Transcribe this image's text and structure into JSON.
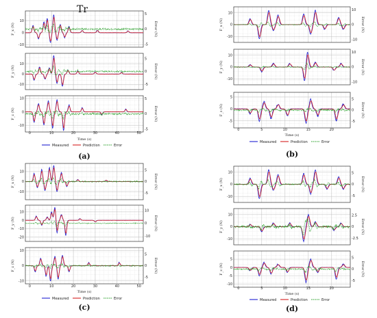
{
  "title": "Tr",
  "legend": {
    "measured": "Measured",
    "prediction": "Prediction",
    "error": "Error"
  },
  "colors": {
    "measured": "#1f1fd0",
    "prediction": "#d62020",
    "error": "#2ca02c"
  },
  "chart_data": [
    {
      "type": "line",
      "panel_label": "(a)",
      "xlabel": "Time (s)",
      "xlim": [
        -2,
        52
      ],
      "xticks": [
        0,
        10,
        20,
        30,
        40,
        50
      ],
      "subplots": [
        {
          "ylabel": "F_x (N)",
          "ylim": [
            -12,
            18
          ],
          "yticks": [
            10,
            0,
            -10
          ],
          "ylabel_right": "Error (N)",
          "err_ylim": [
            -6,
            6
          ],
          "err_yticks": [
            5,
            0,
            -5
          ],
          "events": [
            {
              "x": 1.5,
              "a": 6
            },
            {
              "x": 4.0,
              "a": -5
            },
            {
              "x": 6.5,
              "a": 9
            },
            {
              "x": 8.0,
              "a": 12
            },
            {
              "x": 9.5,
              "a": -8
            },
            {
              "x": 11.0,
              "a": 15
            },
            {
              "x": 12.5,
              "a": -6
            },
            {
              "x": 14.0,
              "a": 7
            },
            {
              "x": 16.0,
              "a": -4
            },
            {
              "x": 18.0,
              "a": 5
            },
            {
              "x": 24.0,
              "a": 2
            },
            {
              "x": 31.0,
              "a": 2
            },
            {
              "x": 45.0,
              "a": 1.5
            }
          ]
        },
        {
          "ylabel": "F_y (N)",
          "ylim": [
            -15,
            20
          ],
          "yticks": [
            10,
            0,
            -10
          ],
          "ylabel_right": "Error (N)",
          "err_ylim": [
            -7,
            7
          ],
          "err_yticks": [
            5,
            0,
            -5
          ],
          "events": [
            {
              "x": 2.0,
              "a": -6
            },
            {
              "x": 4.5,
              "a": 7
            },
            {
              "x": 7.0,
              "a": -5
            },
            {
              "x": 9.0,
              "a": 6
            },
            {
              "x": 11.0,
              "a": 18
            },
            {
              "x": 12.5,
              "a": -9
            },
            {
              "x": 15.0,
              "a": -12
            },
            {
              "x": 17.5,
              "a": 4
            },
            {
              "x": 22.0,
              "a": 3
            },
            {
              "x": 30.0,
              "a": 2
            },
            {
              "x": 42.0,
              "a": 1.5
            }
          ]
        },
        {
          "ylabel": "F_z (N)",
          "ylim": [
            -15,
            12
          ],
          "yticks": [
            10,
            0,
            -10
          ],
          "ylabel_right": "Error (N)",
          "err_ylim": [
            -6,
            6
          ],
          "err_yticks": [
            5,
            0,
            -5
          ],
          "events": [
            {
              "x": 2.0,
              "a": -8
            },
            {
              "x": 4.0,
              "a": 6
            },
            {
              "x": 6.5,
              "a": -10
            },
            {
              "x": 8.5,
              "a": 8
            },
            {
              "x": 10.5,
              "a": -12
            },
            {
              "x": 12.5,
              "a": 9
            },
            {
              "x": 15.5,
              "a": -14
            },
            {
              "x": 18.0,
              "a": 5
            },
            {
              "x": 24.0,
              "a": 3
            },
            {
              "x": 33.0,
              "a": -2
            },
            {
              "x": 44.0,
              "a": 2
            }
          ]
        }
      ]
    },
    {
      "type": "line",
      "panel_label": "(b)",
      "xlabel": "Time (s)",
      "xlim": [
        -1,
        24
      ],
      "xticks": [
        0,
        5,
        10,
        15,
        20
      ],
      "subplots": [
        {
          "ylabel": "F_x (N)",
          "ylim": [
            -15,
            15
          ],
          "yticks": [
            10,
            0,
            -10
          ],
          "ylabel_right": "Error (N)",
          "err_ylim": [
            -12,
            12
          ],
          "err_yticks": [
            10,
            0,
            -10
          ],
          "events": [
            {
              "x": 2.5,
              "a": 5
            },
            {
              "x": 4.5,
              "a": -12
            },
            {
              "x": 6.5,
              "a": 12
            },
            {
              "x": 7.5,
              "a": -5
            },
            {
              "x": 8.5,
              "a": 8
            },
            {
              "x": 14.0,
              "a": 9
            },
            {
              "x": 15.5,
              "a": -8
            },
            {
              "x": 16.5,
              "a": 12
            },
            {
              "x": 18.5,
              "a": -4
            },
            {
              "x": 21.5,
              "a": 6
            },
            {
              "x": 22.5,
              "a": -4
            }
          ]
        },
        {
          "ylabel": "F_y (N)",
          "ylim": [
            -15,
            15
          ],
          "yticks": [
            10,
            0,
            -10
          ],
          "ylabel_right": "Error (N)",
          "err_ylim": [
            -12,
            12
          ],
          "err_yticks": [
            10,
            0,
            -10
          ],
          "events": [
            {
              "x": 2.5,
              "a": 2
            },
            {
              "x": 5.0,
              "a": -4
            },
            {
              "x": 7.5,
              "a": 3
            },
            {
              "x": 11.0,
              "a": 3
            },
            {
              "x": 14.8,
              "a": 13
            },
            {
              "x": 14.2,
              "a": -12
            },
            {
              "x": 16.5,
              "a": 4
            },
            {
              "x": 20.5,
              "a": -3
            },
            {
              "x": 22.0,
              "a": 3
            }
          ]
        },
        {
          "ylabel": "F_z (N)",
          "ylim": [
            -8,
            7
          ],
          "yticks": [
            5,
            0,
            -5
          ],
          "ylabel_right": "Error (N)",
          "err_ylim": [
            -8,
            8
          ],
          "err_yticks": [
            5,
            0,
            -5
          ],
          "events": [
            {
              "x": 2.5,
              "a": -2
            },
            {
              "x": 4.5,
              "a": -5
            },
            {
              "x": 5.5,
              "a": 3
            },
            {
              "x": 7.0,
              "a": -4
            },
            {
              "x": 8.5,
              "a": 2
            },
            {
              "x": 10.5,
              "a": -3
            },
            {
              "x": 14.5,
              "a": -6
            },
            {
              "x": 15.5,
              "a": 4
            },
            {
              "x": 17.0,
              "a": -3
            },
            {
              "x": 21.0,
              "a": -5
            },
            {
              "x": 22.5,
              "a": 2
            }
          ]
        }
      ]
    },
    {
      "type": "line",
      "panel_label": "(c)",
      "xlabel": "Time (s)",
      "xlim": [
        -2,
        52
      ],
      "xticks": [
        0,
        10,
        20,
        30,
        40,
        50
      ],
      "subplots": [
        {
          "ylabel": "F_x (N)",
          "ylim": [
            -18,
            18
          ],
          "yticks": [
            10,
            0,
            -10
          ],
          "ylabel_right": "Error (N)",
          "err_ylim": [
            -8,
            8
          ],
          "err_yticks": [
            5,
            0,
            -5
          ],
          "events": [
            {
              "x": 2.0,
              "a": 8
            },
            {
              "x": 3.5,
              "a": -6
            },
            {
              "x": 5.5,
              "a": 12
            },
            {
              "x": 7.0,
              "a": -9
            },
            {
              "x": 9.0,
              "a": 14
            },
            {
              "x": 11.0,
              "a": 16
            },
            {
              "x": 12.5,
              "a": -10
            },
            {
              "x": 14.5,
              "a": 9
            },
            {
              "x": 17.0,
              "a": -5
            },
            {
              "x": 22.0,
              "a": 2
            },
            {
              "x": 35.0,
              "a": 1.5
            }
          ]
        },
        {
          "ylabel": "F_y (N)",
          "ylim": [
            -25,
            18
          ],
          "yticks": [
            10,
            0,
            -10,
            -20
          ],
          "ylabel_right": "Error (N)",
          "err_ylim": [
            -14,
            14
          ],
          "err_yticks": [
            10,
            0,
            -10
          ],
          "events": [
            {
              "x": 3.0,
              "a": 5
            },
            {
              "x": 5.5,
              "a": -6
            },
            {
              "x": 8.0,
              "a": 4
            },
            {
              "x": 10.0,
              "a": 10
            },
            {
              "x": 11.5,
              "a": 16
            },
            {
              "x": 12.5,
              "a": -15
            },
            {
              "x": 14.5,
              "a": 7
            },
            {
              "x": 16.5,
              "a": -18
            },
            {
              "x": 23.0,
              "a": 2
            },
            {
              "x": 30.0,
              "a": -2
            }
          ]
        },
        {
          "ylabel": "F_z (N)",
          "ylim": [
            -12,
            12
          ],
          "yticks": [
            10,
            0,
            -10
          ],
          "ylabel_right": "Error (N)",
          "err_ylim": [
            -8,
            8
          ],
          "err_yticks": [
            5,
            0,
            -5
          ],
          "events": [
            {
              "x": 2.5,
              "a": -4
            },
            {
              "x": 5.0,
              "a": 5
            },
            {
              "x": 7.5,
              "a": -7
            },
            {
              "x": 9.5,
              "a": -10
            },
            {
              "x": 11.5,
              "a": 6
            },
            {
              "x": 13.0,
              "a": -9
            },
            {
              "x": 15.0,
              "a": 7
            },
            {
              "x": 18.0,
              "a": -4
            },
            {
              "x": 27.0,
              "a": 2
            },
            {
              "x": 41.0,
              "a": 2
            }
          ]
        }
      ]
    },
    {
      "type": "line",
      "panel_label": "(d)",
      "xlabel": "Time (s)",
      "xlim": [
        -1,
        24
      ],
      "xticks": [
        0,
        5,
        10,
        15,
        20
      ],
      "subplots": [
        {
          "ylabel": "F_x (N)",
          "ylim": [
            -15,
            15
          ],
          "yticks": [
            10,
            0,
            -10
          ],
          "ylabel_right": "Error (N)",
          "err_ylim": [
            -8,
            8
          ],
          "err_yticks": [
            5,
            0,
            -5
          ],
          "events": [
            {
              "x": 2.5,
              "a": 5
            },
            {
              "x": 4.5,
              "a": -12
            },
            {
              "x": 6.5,
              "a": 12
            },
            {
              "x": 7.5,
              "a": -5
            },
            {
              "x": 8.5,
              "a": 8
            },
            {
              "x": 14.0,
              "a": 9
            },
            {
              "x": 15.5,
              "a": -8
            },
            {
              "x": 16.5,
              "a": 12
            },
            {
              "x": 19.0,
              "a": -4
            },
            {
              "x": 21.5,
              "a": 6
            },
            {
              "x": 22.5,
              "a": -4
            }
          ]
        },
        {
          "ylabel": "F_y (N)",
          "ylim": [
            -15,
            15
          ],
          "yticks": [
            10,
            0,
            -10
          ],
          "ylabel_right": "Error (N)",
          "err_ylim": [
            -4,
            4
          ],
          "err_yticks": [
            2.5,
            0,
            -2.5
          ],
          "events": [
            {
              "x": 2.5,
              "a": 2
            },
            {
              "x": 5.0,
              "a": -4
            },
            {
              "x": 7.5,
              "a": 3
            },
            {
              "x": 11.0,
              "a": 3
            },
            {
              "x": 14.0,
              "a": -12
            },
            {
              "x": 15.0,
              "a": 10
            },
            {
              "x": 16.5,
              "a": 4
            },
            {
              "x": 20.5,
              "a": -3
            },
            {
              "x": 22.0,
              "a": 3
            }
          ]
        },
        {
          "ylabel": "F_z (N)",
          "ylim": [
            -12,
            10
          ],
          "yticks": [
            5,
            0,
            -5,
            -10
          ],
          "ylabel_right": "Error (N)",
          "err_ylim": [
            -8,
            8
          ],
          "err_yticks": [
            5,
            0,
            -5
          ],
          "events": [
            {
              "x": 2.5,
              "a": -2
            },
            {
              "x": 4.5,
              "a": -5
            },
            {
              "x": 5.5,
              "a": 3
            },
            {
              "x": 7.0,
              "a": -4
            },
            {
              "x": 8.5,
              "a": 2
            },
            {
              "x": 10.5,
              "a": -3
            },
            {
              "x": 14.5,
              "a": -9
            },
            {
              "x": 15.5,
              "a": 5
            },
            {
              "x": 17.0,
              "a": -3
            },
            {
              "x": 21.0,
              "a": -7
            },
            {
              "x": 22.5,
              "a": 2
            }
          ]
        }
      ]
    }
  ]
}
